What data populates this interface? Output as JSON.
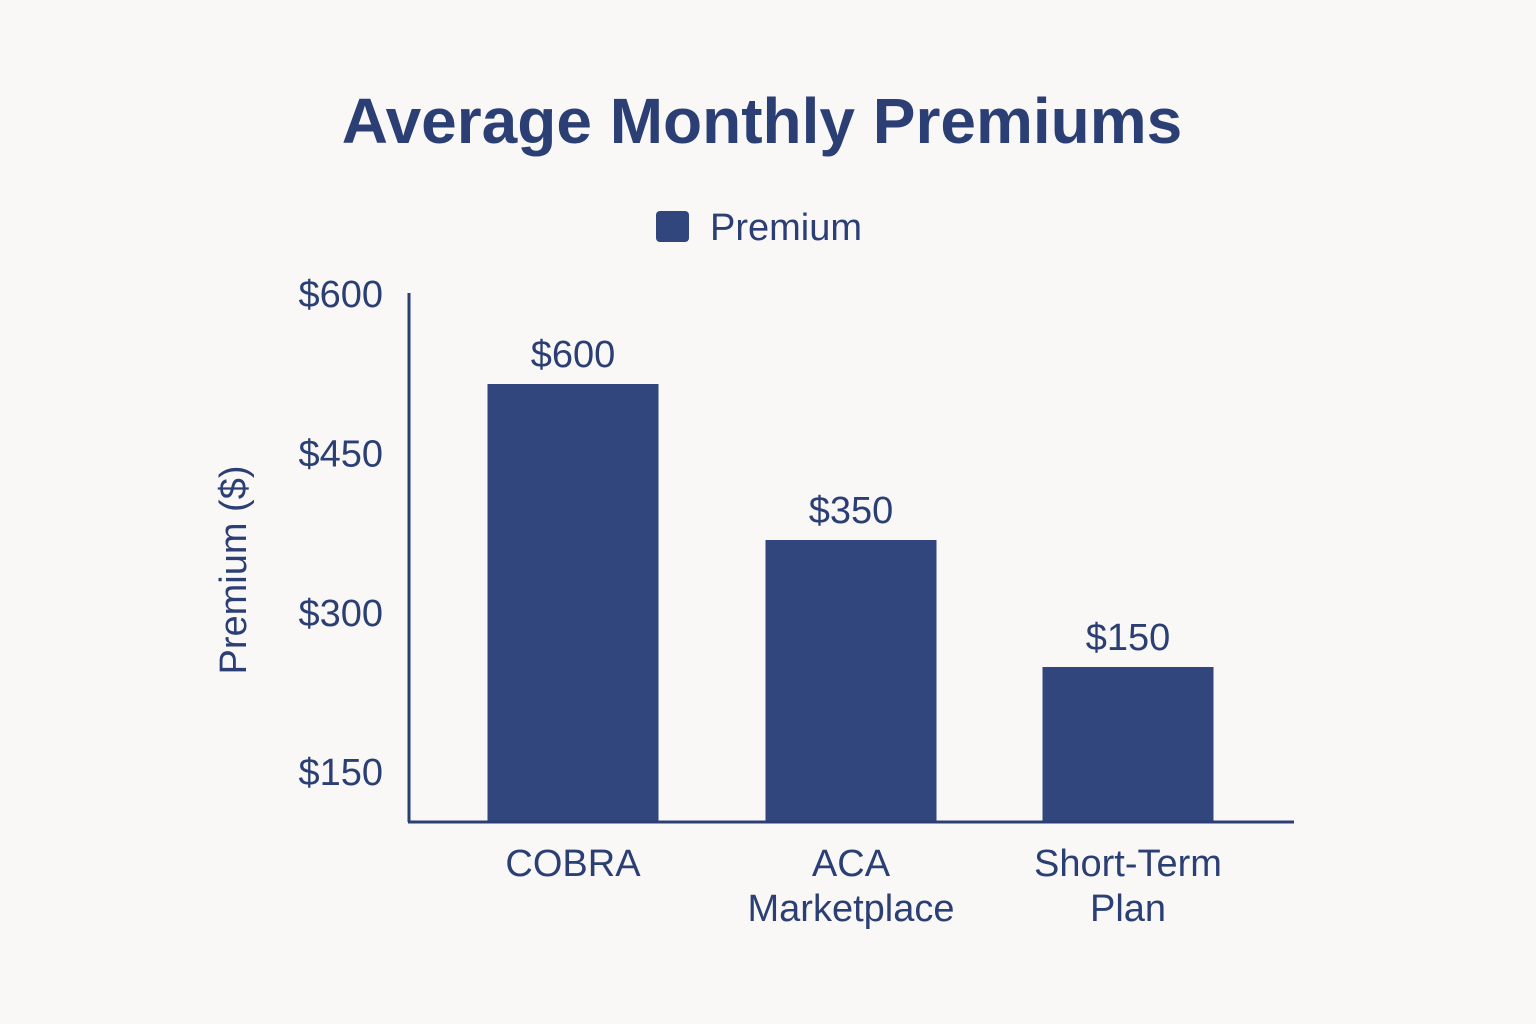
{
  "chart_data": {
    "type": "bar",
    "title": "Average Monthly Premiums",
    "xlabel": "",
    "ylabel": "Premium ($)",
    "categories": [
      "COBRA",
      "ACA Marketplace",
      "Short-Term Plan"
    ],
    "series": [
      {
        "name": "Premium",
        "values": [
          600,
          350,
          150
        ],
        "value_labels": [
          "$600",
          "$350",
          "$150"
        ]
      }
    ],
    "y_ticks": [
      150,
      300,
      450,
      600
    ],
    "y_tick_labels": [
      "$150",
      "$300",
      "$450",
      "$600"
    ],
    "ylim": [
      0,
      600
    ],
    "legend_position": "top-center",
    "grid": false,
    "colors": {
      "bar": "#30467c",
      "text": "#2b3f75",
      "axis": "#2b3f75",
      "background": "#f9f8f6"
    }
  }
}
